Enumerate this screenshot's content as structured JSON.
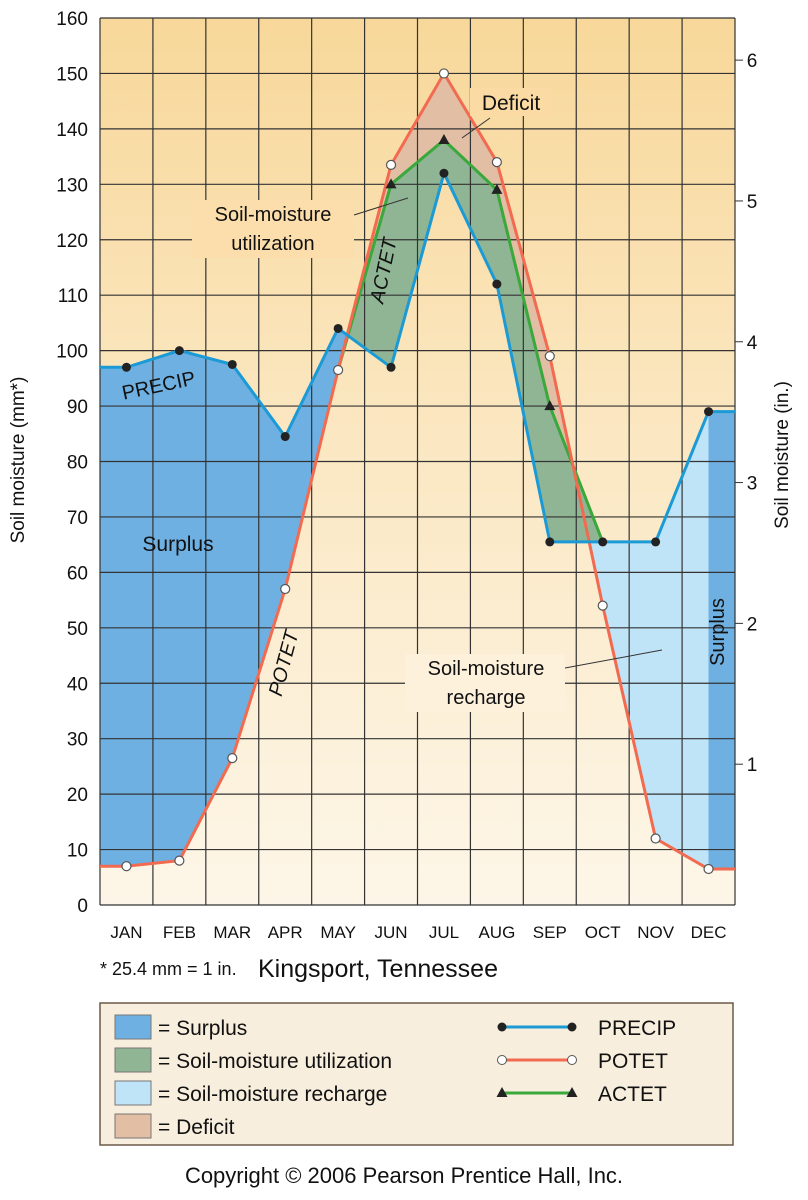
{
  "chart_data": {
    "type": "line",
    "title": "Kingsport, Tennessee",
    "ylabel": "Soil moisture (mm*)",
    "ylabel_right": "Soil moisture (in.)",
    "footnote": "* 25.4 mm = 1 in.",
    "ylim": [
      0,
      160
    ],
    "yticks": [
      0,
      10,
      20,
      30,
      40,
      50,
      60,
      70,
      80,
      90,
      100,
      110,
      120,
      130,
      140,
      150,
      160
    ],
    "yticks_right": [
      1,
      2,
      3,
      4,
      5,
      6
    ],
    "mm_per_inch": 25.4,
    "categories": [
      "JAN",
      "FEB",
      "MAR",
      "APR",
      "MAY",
      "JUN",
      "JUL",
      "AUG",
      "SEP",
      "OCT",
      "NOV",
      "DEC"
    ],
    "grid": true,
    "series": [
      {
        "name": "PRECIP",
        "color": "#1b9ad6",
        "values": [
          97,
          100,
          97.5,
          84.5,
          104,
          97,
          132,
          112,
          65.5,
          65.5,
          65.5,
          89
        ]
      },
      {
        "name": "POTET",
        "color": "#f26b50",
        "values": [
          7,
          8,
          26.5,
          57,
          96.5,
          133.5,
          150,
          134,
          99,
          54,
          12,
          6.5
        ]
      },
      {
        "name": "ACTET",
        "color": "#3aa83a",
        "values": [
          null,
          null,
          null,
          null,
          96.5,
          130,
          138,
          129,
          90,
          65.5,
          null,
          null
        ],
        "markers": [
          5,
          6,
          7,
          8
        ]
      }
    ],
    "areas": {
      "surplus": {
        "label": "Surplus",
        "color": "#6fb0e2"
      },
      "utilization": {
        "label": "Soil-moisture utilization",
        "color": "#8fb595"
      },
      "recharge": {
        "label": "Soil-moisture recharge",
        "color": "#bfe3f7"
      },
      "deficit": {
        "label": "Deficit",
        "color": "#e2bea4"
      }
    },
    "annotations": {
      "precip": "PRECIP",
      "potet": "POTET",
      "actet": "ACTET",
      "surplus": "Surplus",
      "surplus_dec": "Surplus",
      "deficit": "Deficit",
      "util_1": "Soil-moisture",
      "util_2": "utilization",
      "rech_1": "Soil-moisture",
      "rech_2": "recharge"
    },
    "legend": {
      "placement": "bottom",
      "areas": [
        "= Surplus",
        "= Soil-moisture utilization",
        "= Soil-moisture recharge",
        "= Deficit"
      ],
      "lines": [
        "PRECIP",
        "POTET",
        "ACTET"
      ]
    }
  },
  "copyright": "Copyright © 2006 Pearson Prentice Hall, Inc."
}
